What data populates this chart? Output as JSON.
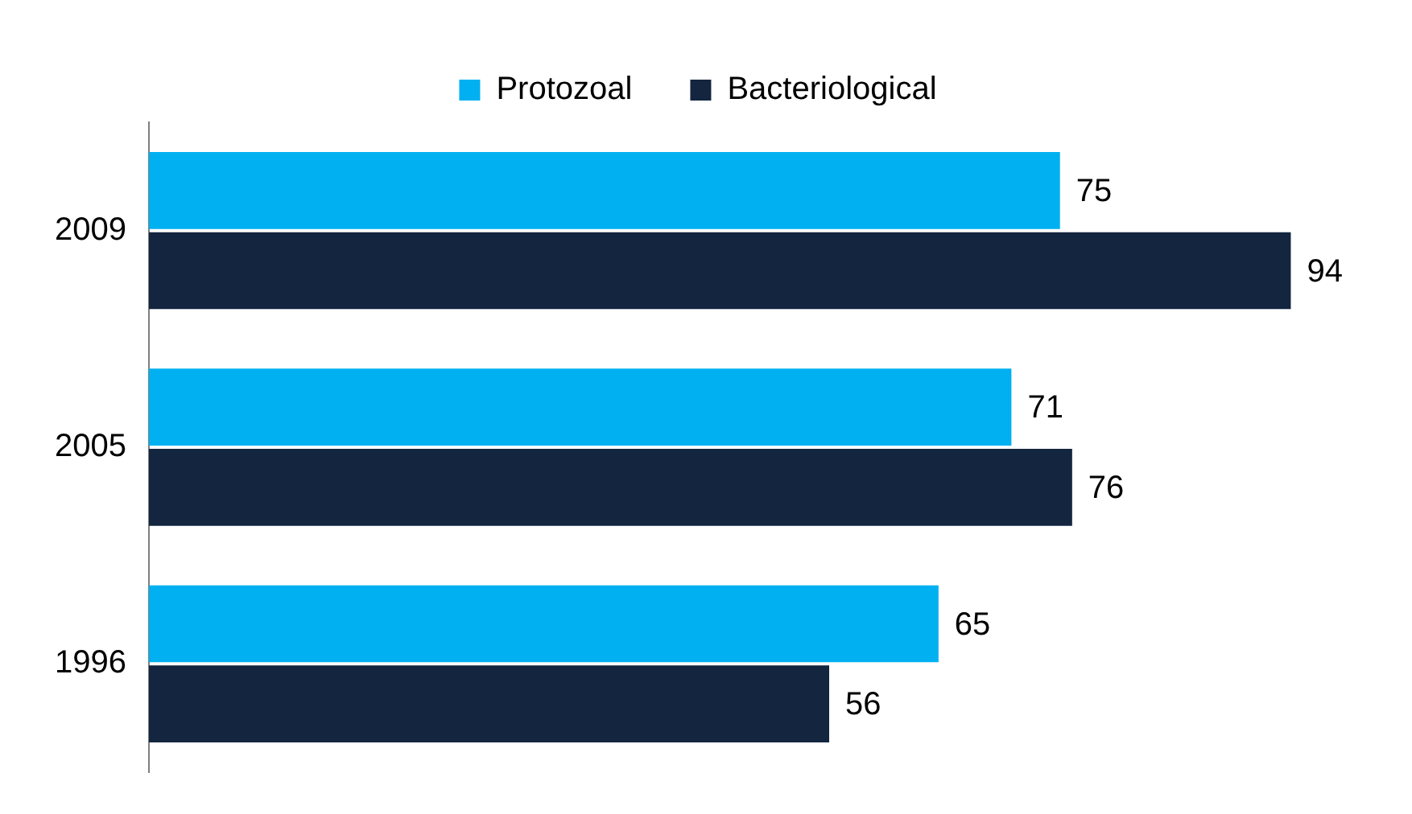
{
  "chart_data": {
    "type": "bar",
    "orientation": "horizontal",
    "categories": [
      "2009",
      "2005",
      "1996"
    ],
    "series": [
      {
        "name": "Protozoal",
        "color": "#00b0f0",
        "values": [
          75,
          71,
          65
        ]
      },
      {
        "name": "Bacteriological",
        "color": "#13253f",
        "values": [
          94,
          76,
          56
        ]
      }
    ],
    "tick_labels": "y",
    "data_labels": true,
    "legend": "top"
  }
}
